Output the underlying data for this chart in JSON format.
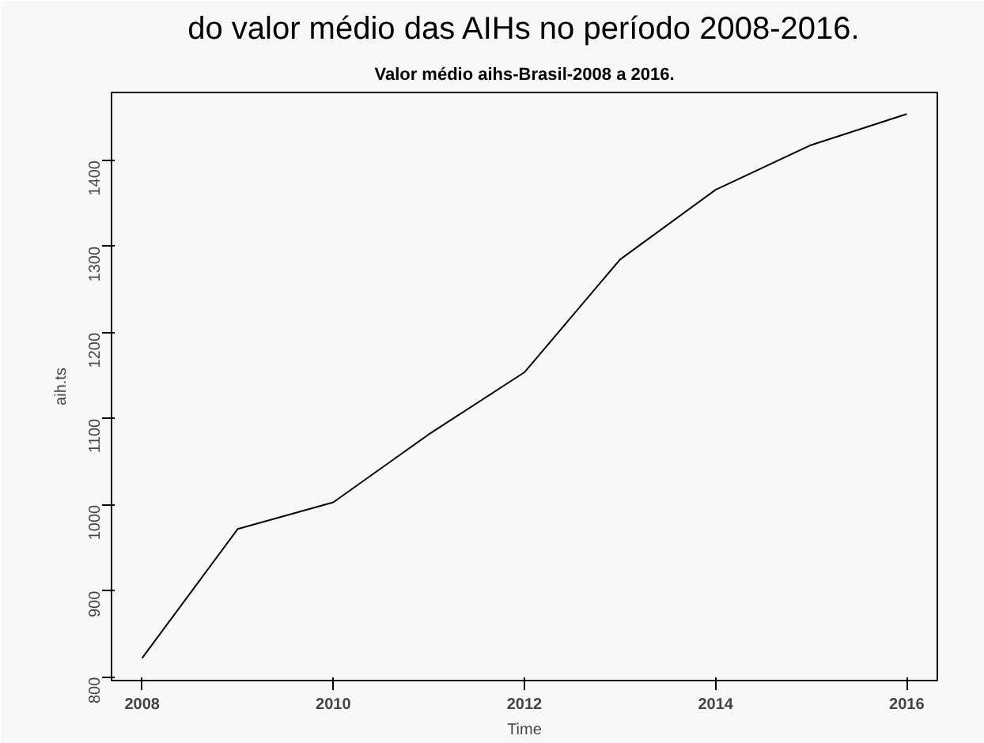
{
  "chart_data": {
    "type": "line",
    "title": "Valor médio aihs-Brasil-2008 a 2016.",
    "xlabel": "Time",
    "ylabel": "aih.ts",
    "annotations": [
      "do valor médio das AIHs no período 2008-2016."
    ],
    "x": [
      2008,
      2009,
      2010,
      2011,
      2012,
      2013,
      2014,
      2015,
      2016
    ],
    "series": [
      {
        "color": "#000000",
        "values": [
          822,
          972,
          1003,
          1082,
          1154,
          1285,
          1366,
          1418,
          1454
        ]
      }
    ],
    "xlim": [
      2007.68,
      2016.32
    ],
    "ylim": [
      796,
      1479
    ],
    "xticks": [
      2008,
      2010,
      2012,
      2014,
      2016
    ],
    "yticks": [
      800,
      900,
      1000,
      1100,
      1200,
      1300,
      1400
    ],
    "grid": false,
    "marker": "none",
    "line_style": "solid"
  }
}
